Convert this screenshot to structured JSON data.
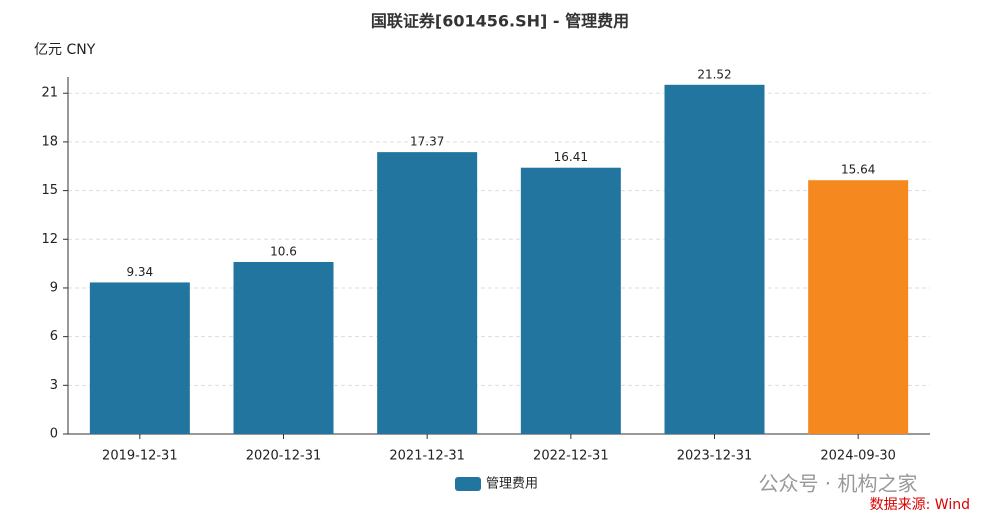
{
  "chart_data": {
    "type": "bar",
    "title": "国联证券[601456.SH] - 管理费用",
    "y_label": "亿元  CNY",
    "categories": [
      "2019-12-31",
      "2020-12-31",
      "2021-12-31",
      "2022-12-31",
      "2023-12-31",
      "2024-09-30"
    ],
    "series": [
      {
        "name": "管理费用",
        "color": "#21759f",
        "values": [
          9.34,
          10.6,
          17.37,
          16.41,
          21.52,
          15.64
        ]
      }
    ],
    "bar_colors": [
      "#21759f",
      "#21759f",
      "#21759f",
      "#21759f",
      "#21759f",
      "#f5891f"
    ],
    "ylim": [
      0,
      22
    ],
    "yticks": [
      0,
      3,
      6,
      9,
      12,
      15,
      18,
      21
    ],
    "grid": true,
    "watermark": "公众号 · 机构之家",
    "source": "数据来源: Wind"
  }
}
